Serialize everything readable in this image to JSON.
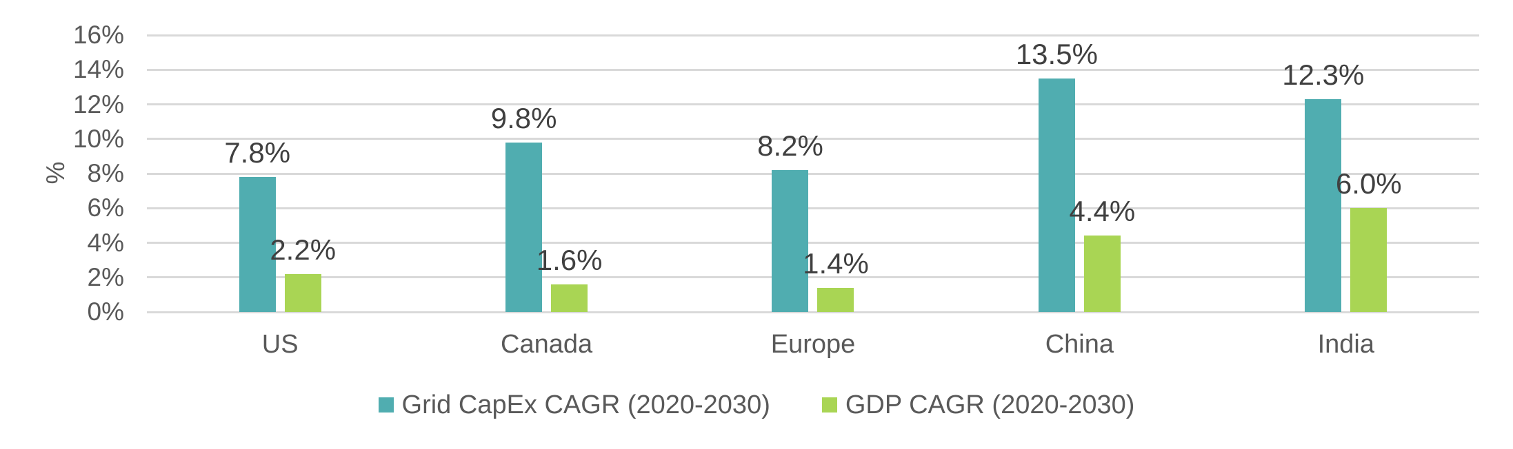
{
  "chart_data": {
    "type": "bar",
    "title": "",
    "xlabel": "",
    "ylabel": "%",
    "categories": [
      "US",
      "Canada",
      "Europe",
      "China",
      "India"
    ],
    "series": [
      {
        "name": "Grid CapEx CAGR (2020-2030)",
        "color": "#50ADB0",
        "values": [
          7.8,
          9.8,
          8.2,
          13.5,
          12.3
        ],
        "labels": [
          "7.8%",
          "9.8%",
          "8.2%",
          "13.5%",
          "12.3%"
        ]
      },
      {
        "name": "GDP CAGR (2020-2030)",
        "color": "#A9D554",
        "values": [
          2.2,
          1.6,
          1.4,
          4.4,
          6.0
        ],
        "labels": [
          "2.2%",
          "1.6%",
          "1.4%",
          "4.4%",
          "6.0%"
        ]
      }
    ],
    "ylim": [
      0,
      16
    ],
    "ytick_step": 2,
    "ytick_labels": [
      "0%",
      "2%",
      "4%",
      "6%",
      "8%",
      "10%",
      "12%",
      "14%",
      "16%"
    ],
    "grid": true,
    "legend_position": "bottom",
    "colors": {
      "gridline": "#D9D9D9",
      "axis_text": "#595959",
      "data_label_text": "#404040",
      "background": "#FFFFFF"
    }
  }
}
